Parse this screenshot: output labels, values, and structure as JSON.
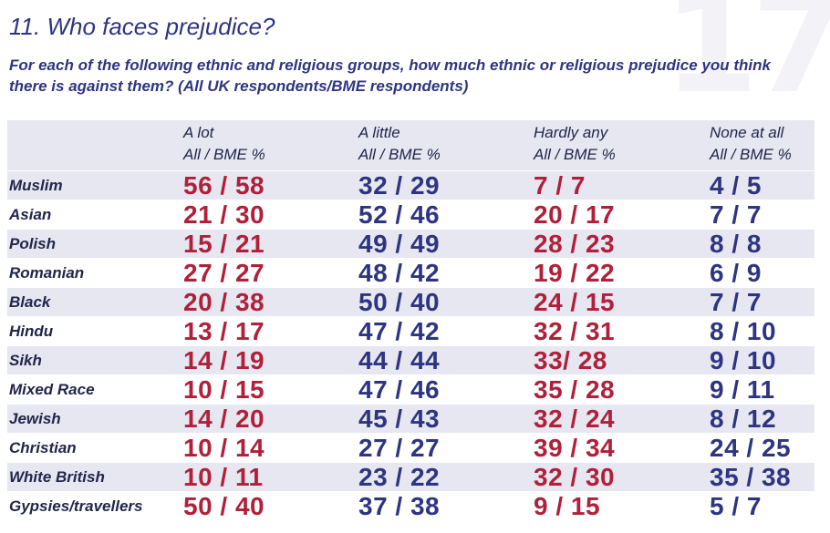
{
  "watermark": "17",
  "title": "11. Who faces prejudice?",
  "subtitle": "For each of the following ethnic and religious groups, how much ethnic or religious prejudice you think there is against them? (All UK respondents/BME respondents)",
  "columns": [
    {
      "name": "A lot",
      "sub": "All / BME %"
    },
    {
      "name": "A little",
      "sub": "All / BME %"
    },
    {
      "name": "Hardly any",
      "sub": "All / BME %"
    },
    {
      "name": "None at all",
      "sub": "All / BME %"
    }
  ],
  "rows": [
    {
      "group": "Muslim",
      "values": [
        "56 / 58",
        "32 / 29",
        "7 / 7",
        "4 / 5"
      ]
    },
    {
      "group": "Asian",
      "values": [
        "21 / 30",
        "52 / 46",
        "20 / 17",
        "7 / 7"
      ]
    },
    {
      "group": "Polish",
      "values": [
        "15 / 21",
        "49 / 49",
        "28 / 23",
        "8 / 8"
      ]
    },
    {
      "group": "Romanian",
      "values": [
        "27 / 27",
        "48 / 42",
        "19 / 22",
        "6 / 9"
      ]
    },
    {
      "group": "Black",
      "values": [
        "20 / 38",
        "50 / 40",
        "24 / 15",
        "7 / 7"
      ]
    },
    {
      "group": "Hindu",
      "values": [
        "13 / 17",
        "47 / 42",
        "32 / 31",
        "8 / 10"
      ]
    },
    {
      "group": "Sikh",
      "values": [
        "14 / 19",
        "44 / 44",
        "33/ 28",
        "9 / 10"
      ]
    },
    {
      "group": "Mixed Race",
      "values": [
        "10 / 15",
        "47 / 46",
        "35 / 28",
        "9 / 11"
      ]
    },
    {
      "group": "Jewish",
      "values": [
        "14 / 20",
        "45 / 43",
        "32 / 24",
        "8 / 12"
      ]
    },
    {
      "group": "Christian",
      "values": [
        "10 / 14",
        "27 / 27",
        "39 / 34",
        "24 / 25"
      ]
    },
    {
      "group": "White British",
      "values": [
        "10 / 11",
        "23 / 22",
        "32 / 30",
        "35 / 38"
      ]
    },
    {
      "group": "Gypsies/travellers",
      "values": [
        "50 / 40",
        "37 / 38",
        "9 / 15",
        "5 / 7"
      ]
    }
  ],
  "colors": {
    "red": "#b0203a",
    "blue": "#2e3580",
    "stripe": "#e6e7f1"
  }
}
